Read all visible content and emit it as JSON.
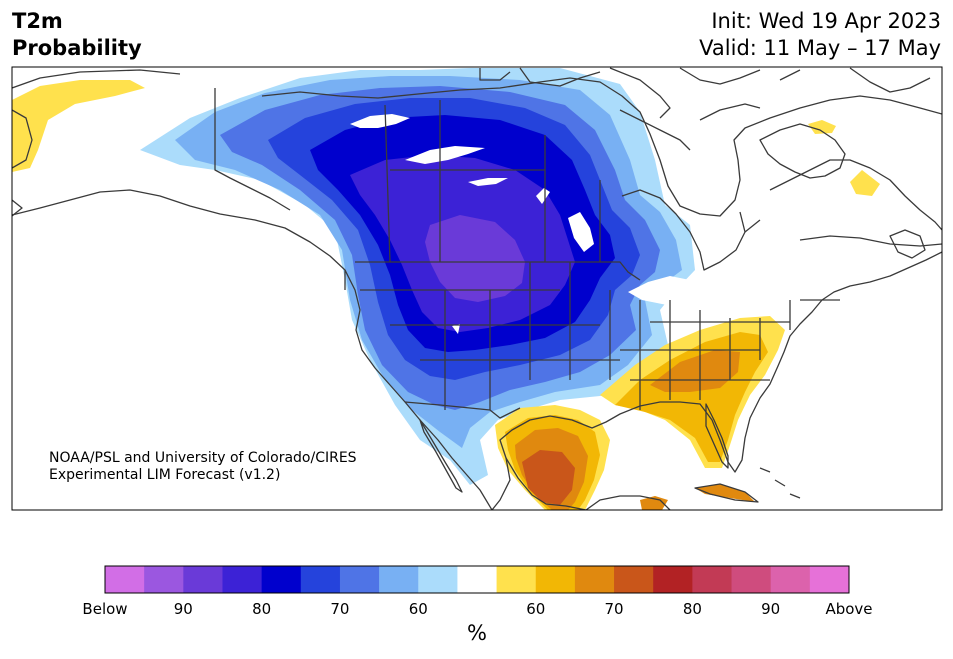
{
  "header": {
    "title_line1": "T2m",
    "title_line2": "Probability",
    "init": "Init: Wed 19 Apr 2023",
    "valid": "Valid: 11 May – 17 May"
  },
  "credit": {
    "line1": "NOAA/PSL and University of Colorado/CIRES",
    "line2": "Experimental LIM Forecast (v1.2)"
  },
  "colorbar": {
    "unit": "%",
    "colors": [
      "#d26ee6",
      "#9b57e0",
      "#6a3ad8",
      "#3c22d6",
      "#0000cd",
      "#2543dc",
      "#4f74e6",
      "#78b0f3",
      "#abdcfb",
      "#ffffff",
      "#ffe14d",
      "#f2b705",
      "#e0890f",
      "#c9561a",
      "#b22224",
      "#c23a55",
      "#cf4c7e",
      "#dc62ac",
      "#e671d8"
    ],
    "labels": [
      "Below",
      "90",
      "80",
      "70",
      "60",
      "60",
      "70",
      "80",
      "90",
      "Above"
    ]
  },
  "map_colors": {
    "below_50": "#abdcfb",
    "below_60": "#78b0f3",
    "below_70": "#4f74e6",
    "below_75": "#2543dc",
    "below_80": "#0000cd",
    "below_85": "#3c22d6",
    "below_90": "#6a3ad8",
    "above_50": "#ffe14d",
    "above_60": "#f2b705",
    "above_70": "#e0890f",
    "above_75": "#c9561a",
    "land_line": "#3a3a3a"
  }
}
